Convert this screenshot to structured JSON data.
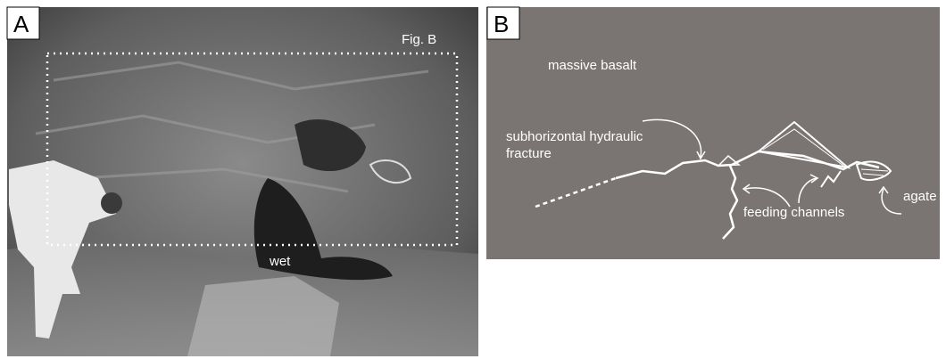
{
  "panel_a": {
    "letter": "A",
    "box_label": "Fig. B",
    "wet_label": "wet"
  },
  "panel_b": {
    "letter": "B",
    "rock_label": "massive basalt",
    "fracture_label": [
      "subhorizontal hydraulic",
      "fracture"
    ],
    "channels_label": "feeding channels",
    "agate_label": "agate"
  }
}
